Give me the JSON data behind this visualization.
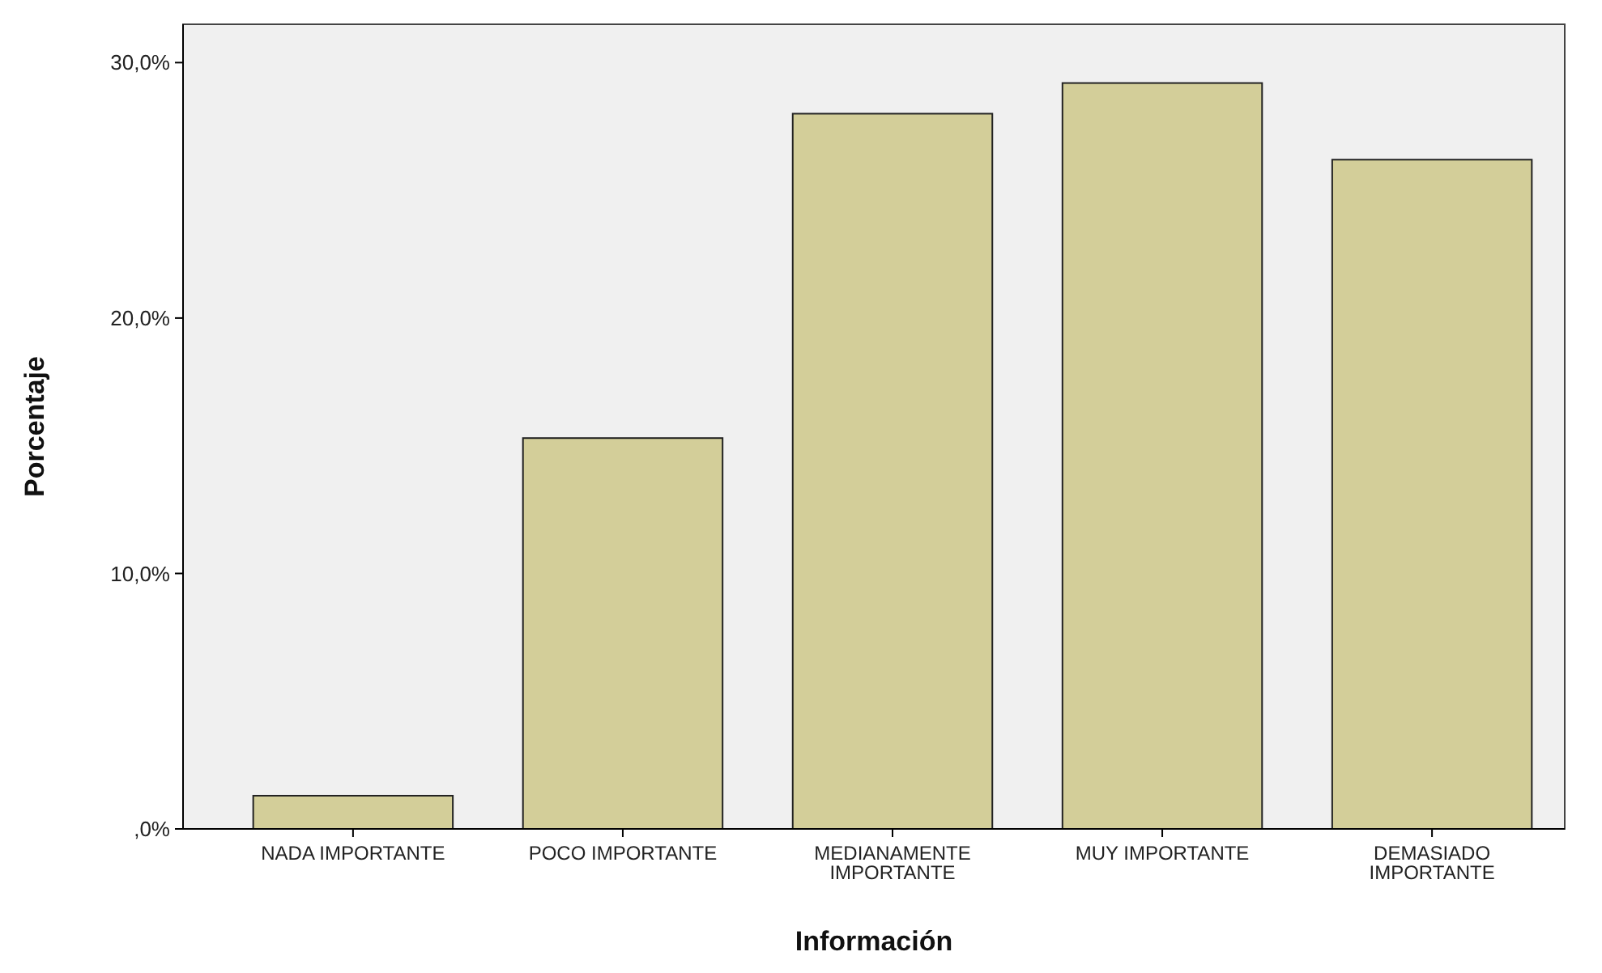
{
  "chart_data": {
    "type": "bar",
    "xlabel": "Información",
    "ylabel": "Porcentaje",
    "categories": [
      "NADA IMPORTANTE",
      "POCO IMPORTANTE",
      "MEDIANAMENTE IMPORTANTE",
      "MUY IMPORTANTE",
      "DEMASIADO IMPORTANTE"
    ],
    "values": [
      1.3,
      15.3,
      28.0,
      29.2,
      26.2
    ],
    "color": "#d3ce99",
    "ylim": [
      0,
      31.5
    ],
    "yticks": [
      {
        "value": 0,
        "label": ",0%"
      },
      {
        "value": 10,
        "label": "10,0%"
      },
      {
        "value": 20,
        "label": "20,0%"
      },
      {
        "value": 30,
        "label": "30,0%"
      }
    ],
    "grid": false
  }
}
